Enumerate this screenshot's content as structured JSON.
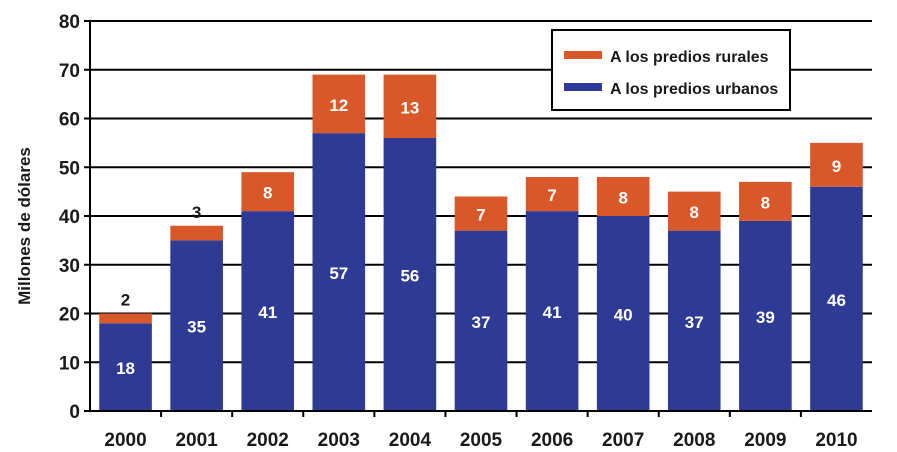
{
  "chart_data": {
    "type": "bar",
    "stacked": true,
    "categories": [
      "2000",
      "2001",
      "2002",
      "2003",
      "2004",
      "2005",
      "2006",
      "2007",
      "2008",
      "2009",
      "2010"
    ],
    "series": [
      {
        "name": "A los predios urbanos",
        "color": "#2e3a93",
        "label_color": "#ffffff",
        "values": [
          18,
          35,
          41,
          57,
          56,
          37,
          41,
          40,
          37,
          39,
          46
        ],
        "labels": [
          "18",
          "35",
          "41",
          "57",
          "56",
          "37",
          "41",
          "40",
          "37",
          "39",
          "46"
        ]
      },
      {
        "name": "A los predios rurales",
        "color": "#d8582a",
        "label_color": "#ffffff",
        "values": [
          2,
          3,
          8,
          12,
          13,
          7,
          7,
          8,
          8,
          8,
          9
        ],
        "labels": [
          "2",
          "3",
          "8",
          "12",
          "13",
          "7",
          "7",
          "8",
          "8",
          "8",
          "9"
        ]
      }
    ],
    "legend_order": [
      1,
      0
    ],
    "outside_label_indices": [
      0,
      1
    ],
    "outside_label_color": "#1a1a1a",
    "title": "",
    "xlabel": "",
    "ylabel": "Millones de dólares",
    "ylim": [
      0,
      80
    ],
    "yticks": [
      "0",
      "10",
      "20",
      "30",
      "40",
      "50",
      "60",
      "70",
      "80"
    ],
    "grid": true,
    "legend_position": "top-right"
  }
}
